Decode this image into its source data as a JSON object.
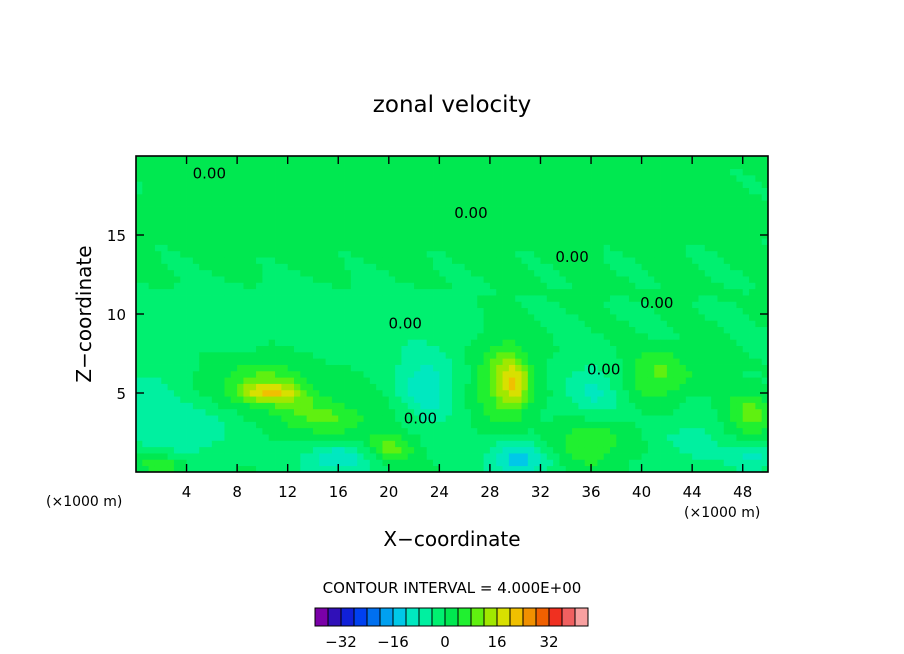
{
  "chart_data": {
    "type": "heatmap",
    "title": "zonal velocity",
    "xlabel": "X−coordinate",
    "ylabel": "Z−coordinate",
    "x_unit": "(×1000 m)",
    "y_unit": "(×1000 m)",
    "xlim": [
      0,
      50
    ],
    "ylim": [
      0,
      20
    ],
    "x_ticks": [
      4,
      8,
      12,
      16,
      20,
      24,
      28,
      32,
      36,
      40,
      44,
      48
    ],
    "y_ticks": [
      5,
      10,
      15
    ],
    "contour_interval_label": "CONTOUR INTERVAL = 4.000E+00",
    "contour_label": "0.00",
    "contour_label_points": [
      {
        "x": 5.8,
        "y": 18.9
      },
      {
        "x": 26.5,
        "y": 16.4
      },
      {
        "x": 34.5,
        "y": 13.6
      },
      {
        "x": 41.2,
        "y": 10.7
      },
      {
        "x": 21.3,
        "y": 9.4
      },
      {
        "x": 37.0,
        "y": 6.5
      },
      {
        "x": 22.5,
        "y": 3.4
      }
    ],
    "colorbar": {
      "levels": [
        -40,
        -36,
        -32,
        -28,
        -24,
        -20,
        -16,
        -12,
        -8,
        -4,
        0,
        4,
        8,
        12,
        16,
        20,
        24,
        28,
        32,
        36,
        40
      ],
      "colors": [
        "#7a00a8",
        "#3010b8",
        "#1020d8",
        "#0040f0",
        "#0070f0",
        "#00a0f0",
        "#00c8e8",
        "#00e8c0",
        "#00f0a0",
        "#00f070",
        "#00e850",
        "#20f030",
        "#60f010",
        "#a0e800",
        "#d8e000",
        "#f0c000",
        "#f09000",
        "#f06000",
        "#f03020",
        "#f06060",
        "#f8a0a0"
      ],
      "tick_labels": [
        {
          "level": -32,
          "label": "−32"
        },
        {
          "level": -16,
          "label": "−16"
        },
        {
          "level": 0,
          "label": "0"
        },
        {
          "level": 16,
          "label": "16"
        },
        {
          "level": 32,
          "label": "32"
        }
      ]
    },
    "field_blobs": [
      {
        "x": 25,
        "y": 17,
        "rx": 28,
        "ry": 4,
        "v": 2
      },
      {
        "x": 8,
        "y": 16,
        "rx": 8,
        "ry": 3,
        "v": 1
      },
      {
        "x": 12,
        "y": 9.5,
        "rx": 14,
        "ry": 2.5,
        "v": -2
      },
      {
        "x": 10,
        "y": 5.5,
        "rx": 4,
        "ry": 1.6,
        "v": 10
      },
      {
        "x": 10.5,
        "y": 5,
        "rx": 2.5,
        "ry": 0.6,
        "v": 13
      },
      {
        "x": 15,
        "y": 3.5,
        "rx": 4,
        "ry": 1.2,
        "v": 8
      },
      {
        "x": 23,
        "y": 5.5,
        "rx": 2.5,
        "ry": 2.5,
        "v": -10
      },
      {
        "x": 29,
        "y": 6,
        "rx": 2,
        "ry": 2.5,
        "v": 11
      },
      {
        "x": 30,
        "y": 5.5,
        "rx": 1.2,
        "ry": 1.5,
        "v": 13
      },
      {
        "x": 36,
        "y": 5,
        "rx": 2.5,
        "ry": 2,
        "v": -8
      },
      {
        "x": 41.5,
        "y": 6.2,
        "rx": 2.5,
        "ry": 1.5,
        "v": 9
      },
      {
        "x": 48.5,
        "y": 3.5,
        "rx": 2,
        "ry": 1.5,
        "v": 9
      },
      {
        "x": 5,
        "y": 3,
        "rx": 4,
        "ry": 2.5,
        "v": -6
      },
      {
        "x": 16,
        "y": 0.8,
        "rx": 3,
        "ry": 1,
        "v": -12
      },
      {
        "x": 30,
        "y": 0.8,
        "rx": 2.5,
        "ry": 1.2,
        "v": -14
      },
      {
        "x": 36,
        "y": 2,
        "rx": 3,
        "ry": 1.5,
        "v": 8
      },
      {
        "x": 44,
        "y": 2,
        "rx": 3,
        "ry": 1.5,
        "v": -6
      },
      {
        "x": 49,
        "y": 1,
        "rx": 2,
        "ry": 1,
        "v": -10
      },
      {
        "x": 1,
        "y": 4,
        "rx": 2,
        "ry": 3,
        "v": -5
      },
      {
        "x": 2,
        "y": 0.5,
        "rx": 2,
        "ry": 0.6,
        "v": 8
      },
      {
        "x": 20,
        "y": 1.5,
        "rx": 2,
        "ry": 1,
        "v": 10
      }
    ]
  }
}
